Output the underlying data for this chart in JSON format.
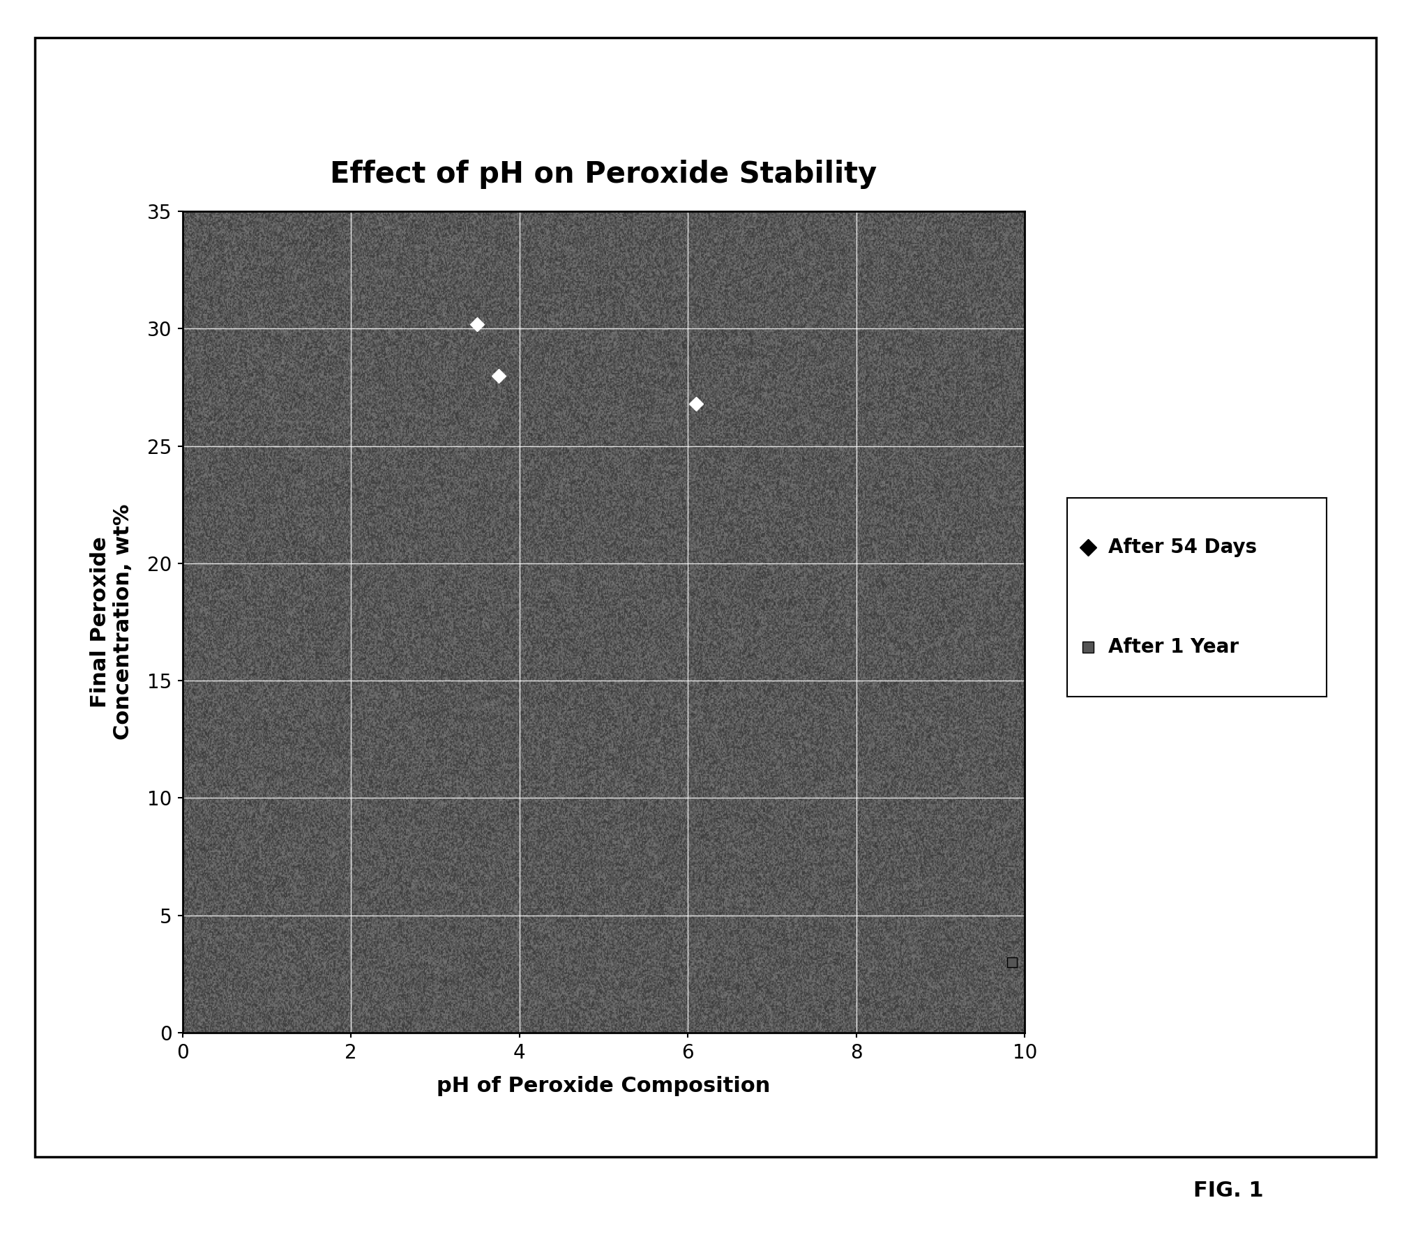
{
  "title": "Effect of pH on Peroxide Stability",
  "xlabel": "pH of Peroxide Composition",
  "ylabel": "Final Peroxide\nConcentration, wt%",
  "xlim": [
    0,
    10
  ],
  "ylim": [
    0,
    35
  ],
  "xticks": [
    0,
    2,
    4,
    6,
    8,
    10
  ],
  "yticks": [
    0,
    5,
    10,
    15,
    20,
    25,
    30,
    35
  ],
  "series_54days": {
    "x": [
      3.5,
      3.75,
      6.1
    ],
    "y": [
      30.2,
      28.0,
      26.8
    ],
    "label": "After 54 Days",
    "marker": "D",
    "markersize": 10
  },
  "series_1year": {
    "x": [
      9.85
    ],
    "y": [
      3.0
    ],
    "label": "After 1 Year",
    "marker": "s",
    "markersize": 10
  },
  "fig_bg_color": "#ffffff",
  "grid_color": "#cccccc",
  "title_fontsize": 30,
  "label_fontsize": 22,
  "tick_fontsize": 20,
  "legend_fontsize": 20,
  "fig_caption": "FIG. 1"
}
